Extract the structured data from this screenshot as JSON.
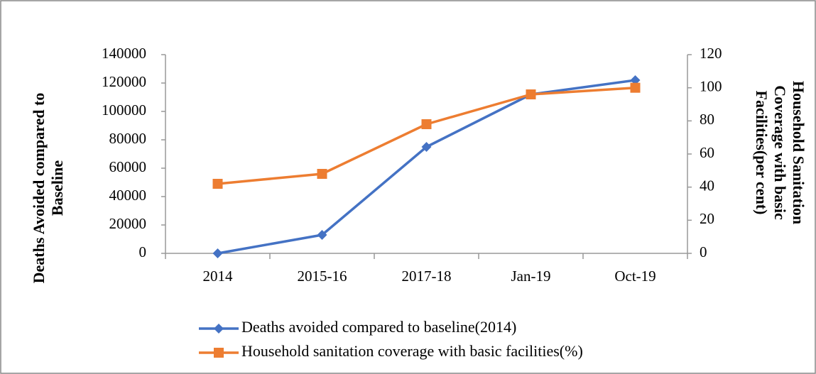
{
  "chart_data": {
    "type": "line",
    "ylabel": [
      "Deaths Avoided compared to",
      "Baseline"
    ],
    "y2label": [
      "Household Sanitation",
      "Coverage with basic",
      "Facilities(per cent)"
    ],
    "categories": [
      "2014",
      "2015-16",
      "2017-18",
      "Jan-19",
      "Oct-19"
    ],
    "series": [
      {
        "name": "Deaths avoided compared to baseline(2014)",
        "color": "#4472c4",
        "marker": "diamond",
        "values": [
          0,
          13000,
          75000,
          112000,
          122000
        ]
      },
      {
        "name": "Household sanitation coverage with basic facilities(%)",
        "color": "#ed7d31",
        "marker": "square",
        "axis": "y2",
        "values": [
          42,
          48,
          78,
          96,
          100
        ]
      }
    ],
    "ylim": [
      0,
      140000
    ],
    "yticks": [
      0,
      20000,
      40000,
      60000,
      80000,
      100000,
      120000,
      140000
    ],
    "y2lim": [
      0,
      120
    ],
    "y2ticks": [
      0,
      20,
      40,
      60,
      80,
      100,
      120
    ],
    "grid": false,
    "legend": "bottom"
  }
}
